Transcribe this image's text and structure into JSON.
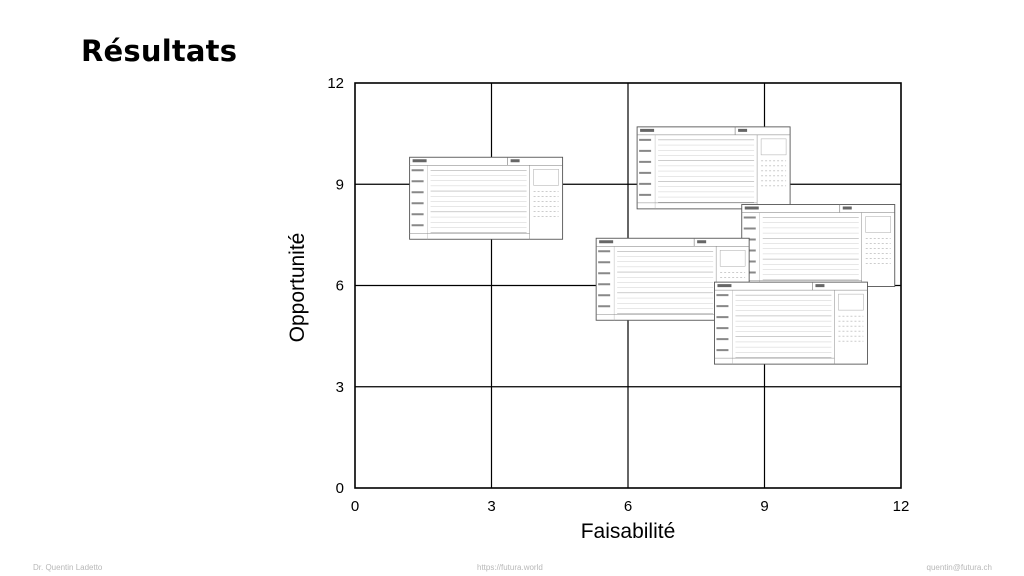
{
  "slide": {
    "title": "Résultats"
  },
  "footer": {
    "left": "Dr. Quentin Ladetto",
    "center": "https://futura.world",
    "right": "quentin@futura.ch"
  },
  "chart_data": {
    "type": "scatter",
    "xlabel": "Faisabilité",
    "ylabel": "Opportunité",
    "xlim": [
      0,
      12
    ],
    "ylim": [
      0,
      12
    ],
    "x_ticks": [
      0,
      3,
      6,
      9,
      12
    ],
    "y_ticks": [
      0,
      3,
      6,
      9,
      12
    ],
    "grid": true,
    "marker": "topic-sheet-thumbnail",
    "points": [
      {
        "x": 1.2,
        "y": 9.8
      },
      {
        "x": 6.2,
        "y": 10.7
      },
      {
        "x": 8.5,
        "y": 8.4
      },
      {
        "x": 5.3,
        "y": 7.4
      },
      {
        "x": 7.9,
        "y": 6.1
      }
    ],
    "colors": {
      "axis": "#000000",
      "grid": "#000000",
      "sheet_border": "#555555",
      "sheet_fill": "#ffffff"
    }
  }
}
